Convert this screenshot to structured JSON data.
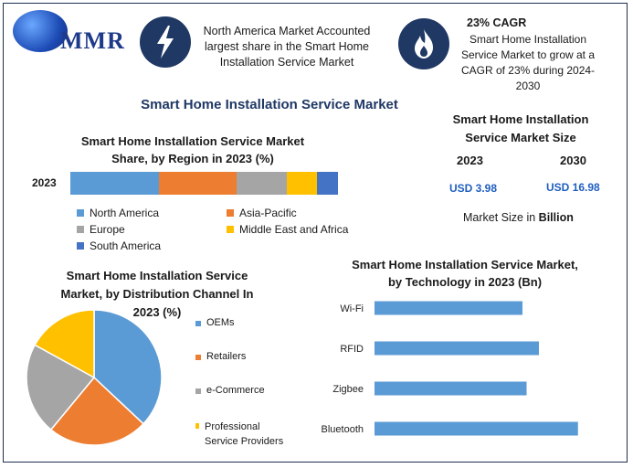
{
  "logo": {
    "text": "MMR"
  },
  "callouts": {
    "share": "North America Market Accounted largest share in the Smart Home Installation Service Market",
    "cagr_title": "23% CAGR",
    "cagr_text": "Smart Home Installation Service Market to grow at a CAGR of 23% during 2024-2030"
  },
  "main_title": "Smart Home Installation Service Market",
  "market_size": {
    "title": "Smart Home Installation Service Market Size",
    "year1": "2023",
    "year2": "2030",
    "value1": "USD 3.98",
    "value2": "USD 16.98",
    "note_prefix": "Market Size in ",
    "note_unit": "Billion"
  },
  "colors": {
    "navy": "#1f3864",
    "blue": "#5b9bd5",
    "orange": "#ed7d31",
    "gray": "#a5a5a5",
    "yellow": "#ffc000",
    "darkblue": "#4472c4",
    "value_blue": "#1f5fbf"
  },
  "chart_data": [
    {
      "type": "bar",
      "orientation": "horizontal-stacked",
      "title": "Smart Home Installation Service Market Share, by Region in 2023 (%)",
      "categories": [
        "2023"
      ],
      "series": [
        {
          "name": "North America",
          "values": [
            33
          ]
        },
        {
          "name": "Asia-Pacific",
          "values": [
            29
          ]
        },
        {
          "name": "Europe",
          "values": [
            19
          ]
        },
        {
          "name": "Middle East and Africa",
          "values": [
            11
          ]
        },
        {
          "name": "South America",
          "values": [
            8
          ]
        }
      ],
      "legend_position": "bottom"
    },
    {
      "type": "pie",
      "title": "Smart Home Installation Service Market, by Distribution Channel In 2023 (%)",
      "slices": [
        {
          "label": "OEMs",
          "value": 37
        },
        {
          "label": "Retailers",
          "value": 24
        },
        {
          "label": "e-Commerce",
          "value": 22
        },
        {
          "label": "Professional Service Providers",
          "value": 17
        }
      ],
      "legend_position": "right"
    },
    {
      "type": "bar",
      "orientation": "horizontal",
      "title": "Smart Home Installation Service Market, by Technology in 2023 (Bn)",
      "categories": [
        "Wi-Fi",
        "RFID",
        "Zigbee",
        "Bluetooth"
      ],
      "values": [
        0.72,
        0.8,
        0.74,
        0.99
      ],
      "grid": false
    }
  ]
}
